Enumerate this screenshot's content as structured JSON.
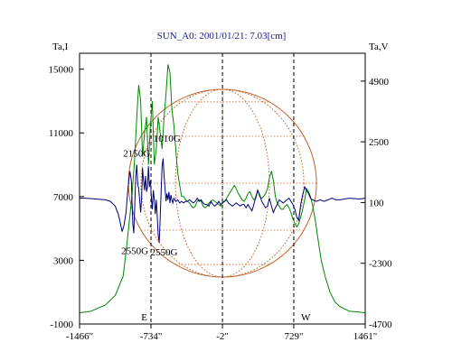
{
  "chart_data": {
    "type": "line",
    "title": "SUN_A0: 2001/01/21: 7.03[cm]",
    "left_axis_label": "Ta,I",
    "right_axis_label": "Ta,V",
    "x_ticks": [
      {
        "value": -1466,
        "label": "-1466\""
      },
      {
        "value": -734,
        "label": "-734\""
      },
      {
        "value": -2,
        "label": "-2\""
      },
      {
        "value": 729,
        "label": "729\""
      },
      {
        "value": 1461,
        "label": "1461\""
      }
    ],
    "xlim": [
      -1466,
      1461
    ],
    "ylim_left": [
      -1000,
      16000
    ],
    "ylim_right": [
      -4700,
      6000
    ],
    "y_ticks_left": [
      15000,
      11000,
      7000,
      3000,
      -1000
    ],
    "y_ticks_right": [
      4900,
      2500,
      100,
      -2300,
      -4700
    ],
    "markers": [
      {
        "label": "E",
        "x": -734
      },
      {
        "label": "",
        "x": -2
      },
      {
        "label": "W",
        "x": 729
      }
    ],
    "annotations": [
      {
        "text": "2150G",
        "x": -880,
        "y": 9500
      },
      {
        "text": "1010G",
        "x": -570,
        "y": 10450
      },
      {
        "text": "2550G",
        "x": -900,
        "y": 3400
      },
      {
        "text": "2550G",
        "x": -600,
        "y": 3300
      }
    ],
    "series": [
      {
        "axis": "left",
        "color": "#008800",
        "points": [
          [
            -1466,
            -300
          ],
          [
            -1350,
            -200
          ],
          [
            -1200,
            200
          ],
          [
            -1100,
            800
          ],
          [
            -1020,
            2000
          ],
          [
            -990,
            3500
          ],
          [
            -960,
            5200
          ],
          [
            -930,
            7000
          ],
          [
            -900,
            9500
          ],
          [
            -880,
            12000
          ],
          [
            -860,
            14000
          ],
          [
            -840,
            13000
          ],
          [
            -820,
            9500
          ],
          [
            -800,
            11000
          ],
          [
            -780,
            12000
          ],
          [
            -760,
            9000
          ],
          [
            -740,
            11500
          ],
          [
            -720,
            13000
          ],
          [
            -700,
            9000
          ],
          [
            -680,
            10000
          ],
          [
            -660,
            12000
          ],
          [
            -640,
            11000
          ],
          [
            -620,
            10000
          ],
          [
            -600,
            12000
          ],
          [
            -580,
            13500
          ],
          [
            -560,
            15300
          ],
          [
            -540,
            14800
          ],
          [
            -520,
            12500
          ],
          [
            -500,
            11500
          ],
          [
            -480,
            10000
          ],
          [
            -460,
            8500
          ],
          [
            -440,
            7700
          ],
          [
            -420,
            7000
          ],
          [
            -400,
            7000
          ],
          [
            -380,
            6800
          ],
          [
            -360,
            6700
          ],
          [
            -340,
            6600
          ],
          [
            -320,
            6400
          ],
          [
            -300,
            6300
          ],
          [
            -280,
            6400
          ],
          [
            -260,
            6700
          ],
          [
            -240,
            6800
          ],
          [
            -220,
            6700
          ],
          [
            -200,
            6400
          ],
          [
            -180,
            6300
          ],
          [
            -160,
            6400
          ],
          [
            -140,
            6600
          ],
          [
            -120,
            6700
          ],
          [
            -100,
            6800
          ],
          [
            -80,
            6700
          ],
          [
            -60,
            6600
          ],
          [
            -40,
            6500
          ],
          [
            -20,
            6400
          ],
          [
            0,
            6700
          ],
          [
            20,
            6700
          ],
          [
            40,
            6900
          ],
          [
            60,
            7100
          ],
          [
            80,
            7300
          ],
          [
            100,
            7500
          ],
          [
            120,
            7700
          ],
          [
            140,
            7500
          ],
          [
            160,
            7200
          ],
          [
            180,
            7000
          ],
          [
            200,
            6800
          ],
          [
            220,
            6700
          ],
          [
            240,
            6900
          ],
          [
            260,
            7200
          ],
          [
            280,
            7300
          ],
          [
            300,
            7000
          ],
          [
            320,
            6800
          ],
          [
            340,
            6900
          ],
          [
            360,
            7400
          ],
          [
            380,
            7000
          ],
          [
            400,
            6900
          ],
          [
            420,
            7000
          ],
          [
            440,
            7200
          ],
          [
            460,
            7500
          ],
          [
            480,
            8200
          ],
          [
            500,
            8600
          ],
          [
            520,
            8000
          ],
          [
            540,
            7000
          ],
          [
            560,
            6600
          ],
          [
            580,
            6400
          ],
          [
            600,
            6200
          ],
          [
            620,
            6200
          ],
          [
            640,
            6400
          ],
          [
            660,
            6500
          ],
          [
            680,
            6300
          ],
          [
            700,
            6000
          ],
          [
            720,
            5600
          ],
          [
            740,
            5300
          ],
          [
            760,
            5100
          ],
          [
            780,
            5300
          ],
          [
            800,
            5700
          ],
          [
            820,
            6200
          ],
          [
            840,
            6800
          ],
          [
            860,
            7500
          ],
          [
            880,
            7300
          ],
          [
            900,
            7000
          ],
          [
            920,
            6500
          ],
          [
            950,
            5500
          ],
          [
            980,
            4200
          ],
          [
            1010,
            3000
          ],
          [
            1050,
            2000
          ],
          [
            1100,
            1000
          ],
          [
            1150,
            400
          ],
          [
            1200,
            100
          ],
          [
            1300,
            -200
          ],
          [
            1400,
            -250
          ],
          [
            1461,
            -300
          ]
        ]
      },
      {
        "axis": "left",
        "color": "#00007a",
        "points": [
          [
            -1466,
            6900
          ],
          [
            -1400,
            6900
          ],
          [
            -1300,
            6850
          ],
          [
            -1200,
            6800
          ],
          [
            -1150,
            6700
          ],
          [
            -1100,
            6400
          ],
          [
            -1070,
            5900
          ],
          [
            -1050,
            5400
          ],
          [
            -1030,
            4800
          ],
          [
            -1010,
            5200
          ],
          [
            -990,
            6000
          ],
          [
            -970,
            7500
          ],
          [
            -950,
            8600
          ],
          [
            -935,
            8000
          ],
          [
            -920,
            5300
          ],
          [
            -910,
            4700
          ],
          [
            -900,
            6500
          ],
          [
            -890,
            8300
          ],
          [
            -880,
            9000
          ],
          [
            -870,
            7800
          ],
          [
            -860,
            7500
          ],
          [
            -850,
            6800
          ],
          [
            -840,
            6000
          ],
          [
            -830,
            7000
          ],
          [
            -820,
            8800
          ],
          [
            -810,
            8000
          ],
          [
            -800,
            7400
          ],
          [
            -790,
            8300
          ],
          [
            -780,
            7300
          ],
          [
            -770,
            7600
          ],
          [
            -760,
            8900
          ],
          [
            -750,
            7600
          ],
          [
            -740,
            8000
          ],
          [
            -730,
            6900
          ],
          [
            -720,
            6200
          ],
          [
            -710,
            7400
          ],
          [
            -700,
            6800
          ],
          [
            -690,
            5900
          ],
          [
            -680,
            6800
          ],
          [
            -670,
            5800
          ],
          [
            -660,
            4600
          ],
          [
            -650,
            4100
          ],
          [
            -640,
            5600
          ],
          [
            -630,
            7400
          ],
          [
            -620,
            8900
          ],
          [
            -610,
            9400
          ],
          [
            -600,
            8300
          ],
          [
            -590,
            7500
          ],
          [
            -580,
            6700
          ],
          [
            -570,
            7200
          ],
          [
            -560,
            6800
          ],
          [
            -550,
            7300
          ],
          [
            -540,
            6600
          ],
          [
            -530,
            7100
          ],
          [
            -520,
            6800
          ],
          [
            -510,
            6600
          ],
          [
            -500,
            6900
          ],
          [
            -480,
            6700
          ],
          [
            -460,
            6800
          ],
          [
            -440,
            6600
          ],
          [
            -420,
            6700
          ],
          [
            -400,
            6600
          ],
          [
            -380,
            6700
          ],
          [
            -360,
            6700
          ],
          [
            -340,
            6800
          ],
          [
            -320,
            6700
          ],
          [
            -300,
            6600
          ],
          [
            -280,
            6700
          ],
          [
            -260,
            6900
          ],
          [
            -240,
            6700
          ],
          [
            -220,
            6800
          ],
          [
            -200,
            6600
          ],
          [
            -180,
            6500
          ],
          [
            -160,
            6500
          ],
          [
            -140,
            6400
          ],
          [
            -120,
            6700
          ],
          [
            -100,
            6500
          ],
          [
            -80,
            6400
          ],
          [
            -60,
            6500
          ],
          [
            -40,
            6700
          ],
          [
            -20,
            6500
          ],
          [
            0,
            6600
          ],
          [
            20,
            6700
          ],
          [
            40,
            6800
          ],
          [
            60,
            6600
          ],
          [
            80,
            6500
          ],
          [
            100,
            6400
          ],
          [
            120,
            6500
          ],
          [
            140,
            6600
          ],
          [
            160,
            6500
          ],
          [
            180,
            6400
          ],
          [
            200,
            6500
          ],
          [
            220,
            6500
          ],
          [
            240,
            6300
          ],
          [
            260,
            6500
          ],
          [
            280,
            6300
          ],
          [
            300,
            6100
          ],
          [
            320,
            6500
          ],
          [
            340,
            7000
          ],
          [
            360,
            7400
          ],
          [
            380,
            7100
          ],
          [
            400,
            6700
          ],
          [
            420,
            6500
          ],
          [
            440,
            6300
          ],
          [
            460,
            6400
          ],
          [
            480,
            6900
          ],
          [
            500,
            6400
          ],
          [
            520,
            6000
          ],
          [
            540,
            6300
          ],
          [
            560,
            6500
          ],
          [
            580,
            6800
          ],
          [
            600,
            6700
          ],
          [
            620,
            6600
          ],
          [
            640,
            6700
          ],
          [
            660,
            6800
          ],
          [
            680,
            6900
          ],
          [
            700,
            6700
          ],
          [
            720,
            6500
          ],
          [
            740,
            6200
          ],
          [
            760,
            5700
          ],
          [
            780,
            5500
          ],
          [
            800,
            6500
          ],
          [
            820,
            7100
          ],
          [
            840,
            7600
          ],
          [
            860,
            7400
          ],
          [
            880,
            7200
          ],
          [
            900,
            6900
          ],
          [
            920,
            6800
          ],
          [
            960,
            6700
          ],
          [
            1000,
            6800
          ],
          [
            1040,
            6700
          ],
          [
            1080,
            6800
          ],
          [
            1120,
            6900
          ],
          [
            1160,
            6800
          ],
          [
            1200,
            6800
          ],
          [
            1300,
            6900
          ],
          [
            1400,
            6850
          ],
          [
            1461,
            6900
          ]
        ]
      }
    ]
  }
}
